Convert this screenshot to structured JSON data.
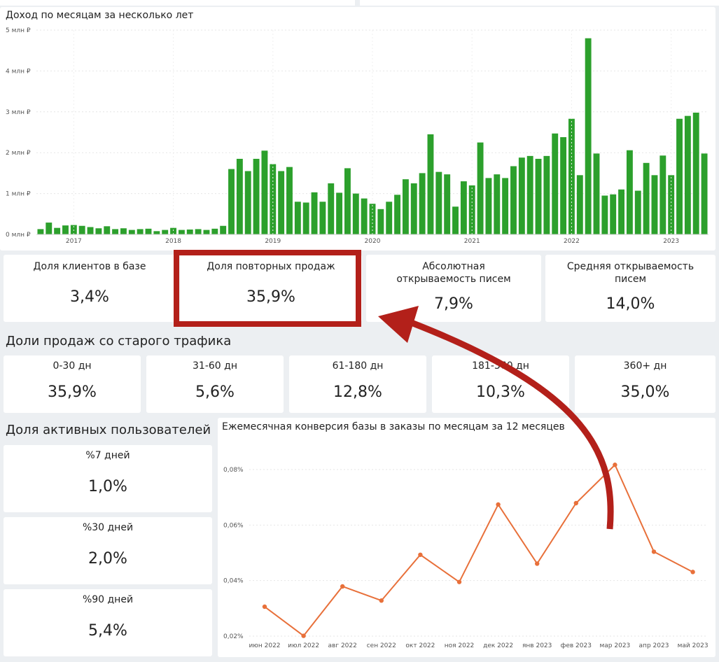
{
  "revenue_chart": {
    "title": "Доход по месяцам за несколько лет",
    "chart_data": {
      "type": "bar",
      "ylim": [
        0,
        5000000
      ],
      "yticks": [
        "0 млн ₽",
        "1 млн ₽",
        "2 млн ₽",
        "3 млн ₽",
        "4 млн ₽",
        "5 млн ₽"
      ],
      "xticks": [
        "2017",
        "2018",
        "2019",
        "2020",
        "2021",
        "2022",
        "2023"
      ],
      "color": "#2ca02c",
      "start_label": "2016-09",
      "values_mln": [
        0.13,
        0.29,
        0.16,
        0.22,
        0.23,
        0.21,
        0.18,
        0.15,
        0.2,
        0.13,
        0.15,
        0.11,
        0.13,
        0.14,
        0.08,
        0.11,
        0.16,
        0.11,
        0.12,
        0.13,
        0.11,
        0.14,
        0.21,
        1.6,
        1.85,
        1.55,
        1.85,
        2.05,
        1.72,
        1.55,
        1.65,
        0.8,
        0.78,
        1.03,
        0.8,
        1.25,
        1.02,
        1.62,
        1.0,
        0.88,
        0.75,
        0.62,
        0.8,
        0.97,
        1.35,
        1.25,
        1.5,
        2.45,
        1.53,
        1.47,
        0.68,
        1.3,
        1.2,
        2.25,
        1.38,
        1.47,
        1.38,
        1.67,
        1.88,
        1.92,
        1.85,
        1.92,
        2.47,
        2.38,
        2.83,
        1.45,
        4.8,
        1.98,
        0.95,
        0.98,
        1.1,
        2.06,
        1.07,
        1.75,
        1.45,
        1.93,
        1.45,
        2.83,
        2.9,
        2.98,
        1.98
      ]
    }
  },
  "kpi_top": [
    {
      "label": "Доля клиентов в базе",
      "value": "3,4%"
    },
    {
      "label": "Доля повторных продаж",
      "value": "35,9%"
    },
    {
      "label": "Абсолютная открываемость писем",
      "value": "7,9%"
    },
    {
      "label": "Средняя открываемость писем",
      "value": "14,0%"
    }
  ],
  "old_traffic": {
    "title": "Доли продаж со старого трафика",
    "items": [
      {
        "label": "0-30 дн",
        "value": "35,9%"
      },
      {
        "label": "31-60 дн",
        "value": "5,6%"
      },
      {
        "label": "61-180 дн",
        "value": "12,8%"
      },
      {
        "label": "181-360 дн",
        "value": "10,3%"
      },
      {
        "label": "360+ дн",
        "value": "35,0%"
      }
    ]
  },
  "active_users": {
    "title": "Доля активных пользователей",
    "items": [
      {
        "label": "%7 дней",
        "value": "1,0%"
      },
      {
        "label": "%30 дней",
        "value": "2,0%"
      },
      {
        "label": "%90 дней",
        "value": "5,4%"
      }
    ]
  },
  "conversion_chart": {
    "title": "Ежемесячная конверсия базы в заказы по месяцам за 12 месяцев",
    "chart_data": {
      "type": "line",
      "color": "#e8703a",
      "x": [
        "июн 2022",
        "июл 2022",
        "авг 2022",
        "сен 2022",
        "окт 2022",
        "ноя 2022",
        "дек 2022",
        "янв 2023",
        "фев 2023",
        "мар 2023",
        "апр 2023",
        "май 2023"
      ],
      "values": [
        0.0306,
        0.0201,
        0.0379,
        0.0328,
        0.0493,
        0.0395,
        0.0674,
        0.0461,
        0.0679,
        0.0817,
        0.0504,
        0.0431
      ],
      "ylim": [
        0.02,
        0.08
      ],
      "yticks": [
        "0,02%",
        "0,04%",
        "0,06%",
        "0,08%"
      ]
    }
  },
  "annotation": {
    "color": "#b3201a"
  }
}
